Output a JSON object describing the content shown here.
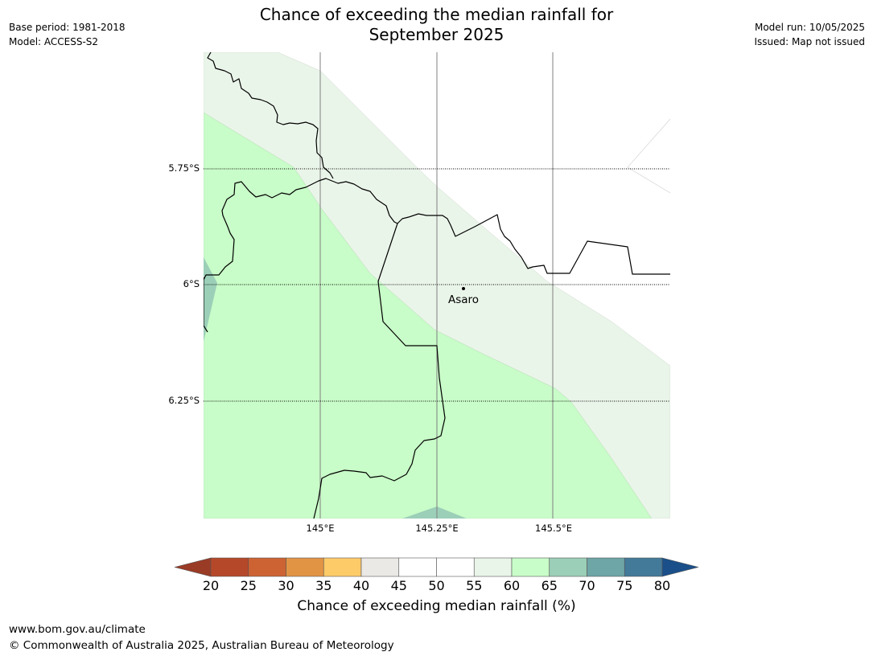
{
  "title": {
    "line1": "Chance of exceeding the median rainfall for",
    "line2": "September 2025"
  },
  "meta": {
    "base_period": "Base period: 1981-2018",
    "model": "Model: ACCESS-S2",
    "model_run": "Model run: 10/05/2025",
    "issued": "Issued: Map not issued"
  },
  "map": {
    "lat_labels": [
      "5.75°S",
      "6°S",
      "6.25°S"
    ],
    "lon_labels": [
      "145°E",
      "145.25°E",
      "145.5°E"
    ],
    "place": {
      "name": "Asaro"
    }
  },
  "legend": {
    "ticks": [
      "20",
      "25",
      "30",
      "35",
      "40",
      "45",
      "50",
      "55",
      "60",
      "65",
      "70",
      "75",
      "80"
    ],
    "colors": [
      "#9a3b26",
      "#b6482a",
      "#cd6332",
      "#e29445",
      "#fecb69",
      "#ebe9e5",
      "#ffffff",
      "#ffffff",
      "#eaf5e9",
      "#c8fcc8",
      "#9ccfb8",
      "#6ea5a6",
      "#437a99",
      "#1a4f89"
    ],
    "title": "Chance of exceeding median rainfall (%)"
  },
  "footer": {
    "url": "www.bom.gov.au/climate",
    "copyright": "© Commonwealth of Australia 2025, Australian Bureau of Meteorology"
  }
}
